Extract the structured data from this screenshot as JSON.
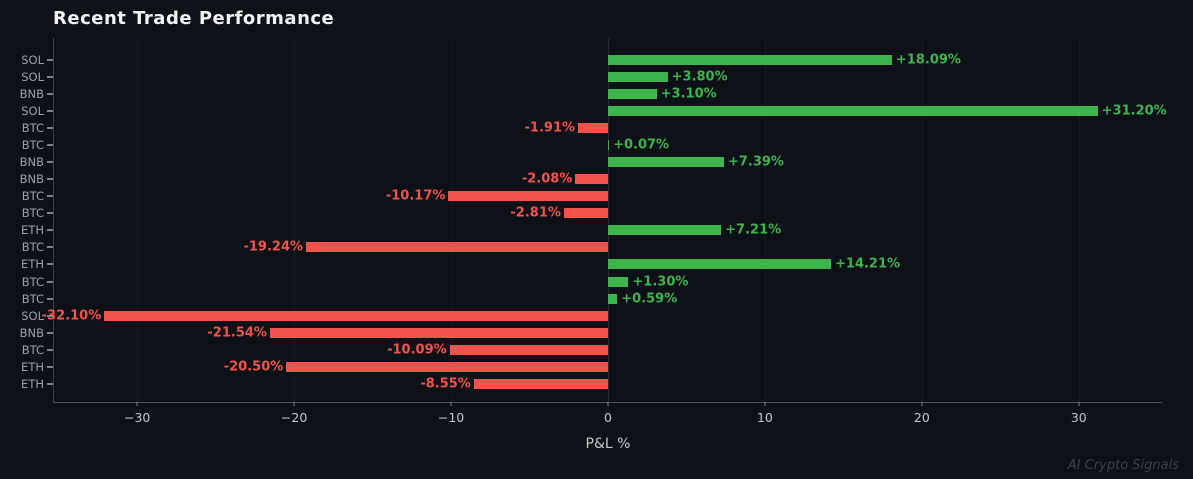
{
  "page": {
    "title": "Recent Trade Performance",
    "watermark": "AI Crypto Signals"
  },
  "colors": {
    "background": "#0e1117",
    "positive": "#3cb54e",
    "negative": "#f4534b",
    "grid": "#161b23",
    "zero_line": "#262c35",
    "spine": "#51575f",
    "axis_text": "#c3c6ca",
    "category_text": "#9aa0a8",
    "title_text": "#f2f3f5",
    "watermark_text": "#3c424b"
  },
  "chart_data": {
    "type": "bar",
    "orientation": "horizontal",
    "title": "Recent Trade Performance",
    "xlabel": "P&L %",
    "grid": true,
    "legend": "none",
    "xlim": [
      -35.3,
      35.3
    ],
    "xticks": [
      {
        "value": -30,
        "label": "−30"
      },
      {
        "value": -20,
        "label": "−20"
      },
      {
        "value": -10,
        "label": "−10"
      },
      {
        "value": 0,
        "label": "0"
      },
      {
        "value": 10,
        "label": "10"
      },
      {
        "value": 20,
        "label": "20"
      },
      {
        "value": 30,
        "label": "30"
      }
    ],
    "categories": [
      "SOL",
      "SOL",
      "BNB",
      "SOL",
      "BTC",
      "BTC",
      "BNB",
      "BNB",
      "BTC",
      "BTC",
      "ETH",
      "BTC",
      "ETH",
      "BTC",
      "BTC",
      "SOL",
      "BNB",
      "BTC",
      "ETH",
      "ETH"
    ],
    "values": [
      18.09,
      3.8,
      3.1,
      31.2,
      -1.91,
      0.07,
      7.39,
      -2.08,
      -10.17,
      -2.81,
      7.21,
      -19.24,
      14.21,
      1.3,
      0.59,
      -32.1,
      -21.54,
      -10.09,
      -20.5,
      -8.55
    ],
    "labels": [
      "+18.09%",
      "+3.80%",
      "+3.10%",
      "+31.20%",
      "-1.91%",
      "+0.07%",
      "+7.39%",
      "-2.08%",
      "-10.17%",
      "-2.81%",
      "+7.21%",
      "-19.24%",
      "+14.21%",
      "+1.30%",
      "+0.59%",
      "-32.10%",
      "-21.54%",
      "-10.09%",
      "-20.50%",
      "-8.55%"
    ]
  }
}
